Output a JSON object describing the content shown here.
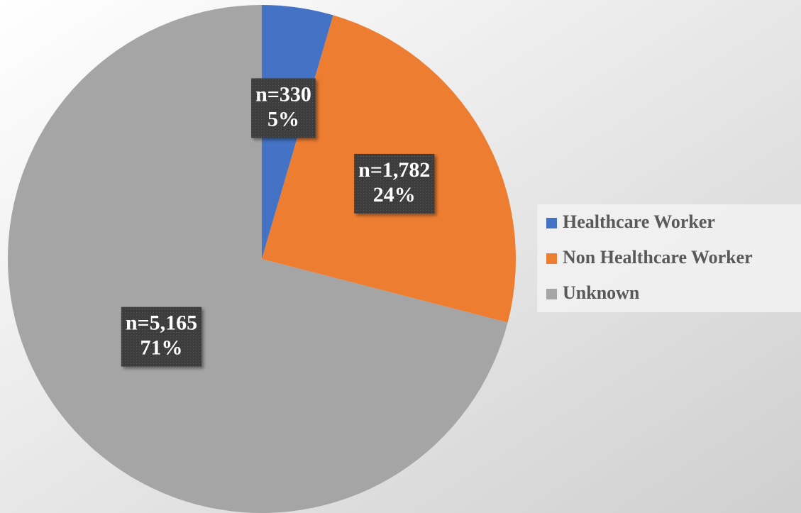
{
  "chart_data": {
    "type": "pie",
    "categories": [
      "Healthcare Worker",
      "Non Healthcare Worker",
      "Unknown"
    ],
    "values": [
      330,
      1782,
      5165
    ],
    "value_labels": [
      "n=330",
      "n=1,782",
      "n=5,165"
    ],
    "percents": [
      5,
      24,
      71
    ],
    "percent_labels": [
      "5%",
      "24%",
      "71%"
    ],
    "colors": [
      "#4472c4",
      "#ed7d31",
      "#a5a5a5"
    ],
    "legend": "right"
  }
}
